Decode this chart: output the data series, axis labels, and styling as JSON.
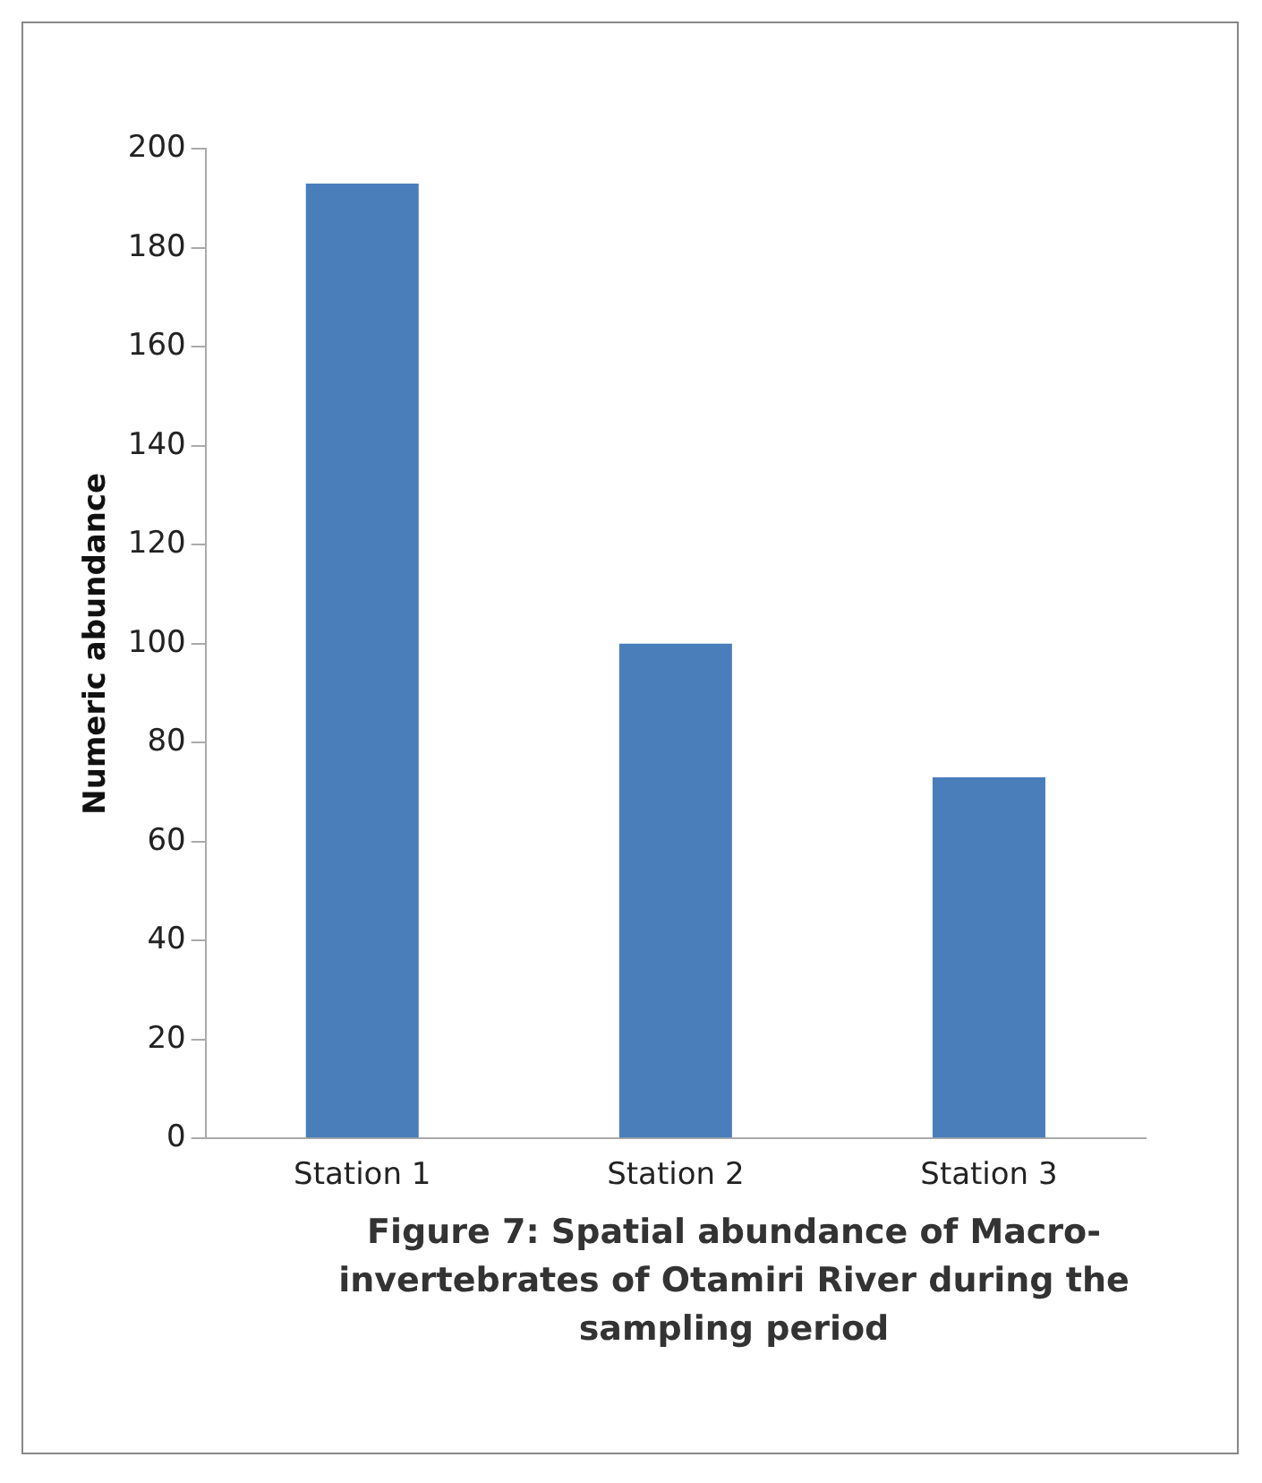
{
  "chart_data": {
    "type": "bar",
    "title": "Figure 7: Spatial abundance of Macro-invertebrates of Otamiri  River during the sampling period",
    "ylabel": "Numeric abundance",
    "categories": [
      "Station 1",
      "Station 2",
      "Station 3"
    ],
    "values": [
      193,
      100,
      73
    ],
    "color": "#4a7ebb",
    "ylim": [
      0,
      200
    ],
    "yticks": [
      0,
      20,
      40,
      60,
      80,
      100,
      120,
      140,
      160,
      180,
      200
    ],
    "grid": false,
    "legend": false
  }
}
